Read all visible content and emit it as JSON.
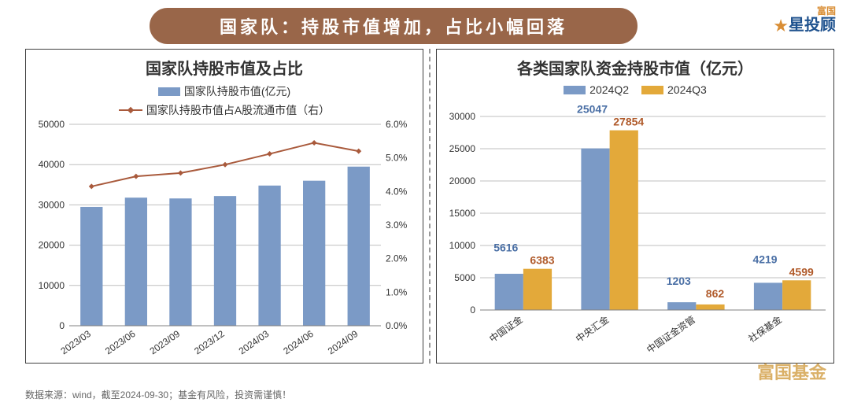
{
  "title": "国家队：持股市值增加，占比小幅回落",
  "logo": {
    "line1": "富国",
    "line2": "星投顾"
  },
  "footnote": "数据来源：wind，截至2024-09-30；基金有风险，投资需谨慎！",
  "watermark": "富国基金",
  "left_chart": {
    "type": "bar+line-dual-axis",
    "title": "国家队持股市值及占比",
    "legend": {
      "bar": "国家队持股市值(亿元)",
      "line": "国家队持股市值占A股流通市值（右）"
    },
    "categories": [
      "2023/03",
      "2023/06",
      "2023/09",
      "2023/12",
      "2024/03",
      "2024/06",
      "2024/09"
    ],
    "bar_values": [
      29500,
      31800,
      31600,
      32200,
      34800,
      36000,
      39500
    ],
    "line_values": [
      4.15,
      4.45,
      4.55,
      4.8,
      5.12,
      5.45,
      5.2
    ],
    "y_left": {
      "min": 0,
      "max": 50000,
      "step": 10000
    },
    "y_right": {
      "min": 0.0,
      "max": 6.0,
      "step": 1.0,
      "format_pct": true
    },
    "colors": {
      "bar": "#7b9ac6",
      "line": "#a95a3c",
      "grid": "#bfbfbf",
      "axis": "#808080",
      "background": "#ffffff",
      "label": "#333333"
    },
    "bar_width_ratio": 0.5,
    "line_width": 2,
    "marker": "diamond",
    "marker_size": 7,
    "font_sizes": {
      "title": 20,
      "legend": 14,
      "tick": 12
    }
  },
  "right_chart": {
    "type": "grouped-bar",
    "title": "各类国家队资金持股市值（亿元）",
    "legend": [
      "2024Q2",
      "2024Q3"
    ],
    "categories": [
      "中国证金",
      "中央汇金",
      "中国证金资管",
      "社保基金"
    ],
    "series": {
      "2024Q2": [
        5616,
        25047,
        1203,
        4219
      ],
      "2024Q3": [
        6383,
        27854,
        862,
        4599
      ]
    },
    "y": {
      "min": 0,
      "max": 30000,
      "step": 5000
    },
    "colors": {
      "2024Q2": "#7b9ac6",
      "2024Q3": "#e3a93a",
      "label_q2": "#4a6fa5",
      "label_q3": "#b05a2a",
      "grid": "#bfbfbf",
      "axis": "#808080",
      "background": "#ffffff"
    },
    "bar_width_ratio": 0.33,
    "font_sizes": {
      "title": 20,
      "legend": 14,
      "tick": 13,
      "val": 14
    }
  }
}
